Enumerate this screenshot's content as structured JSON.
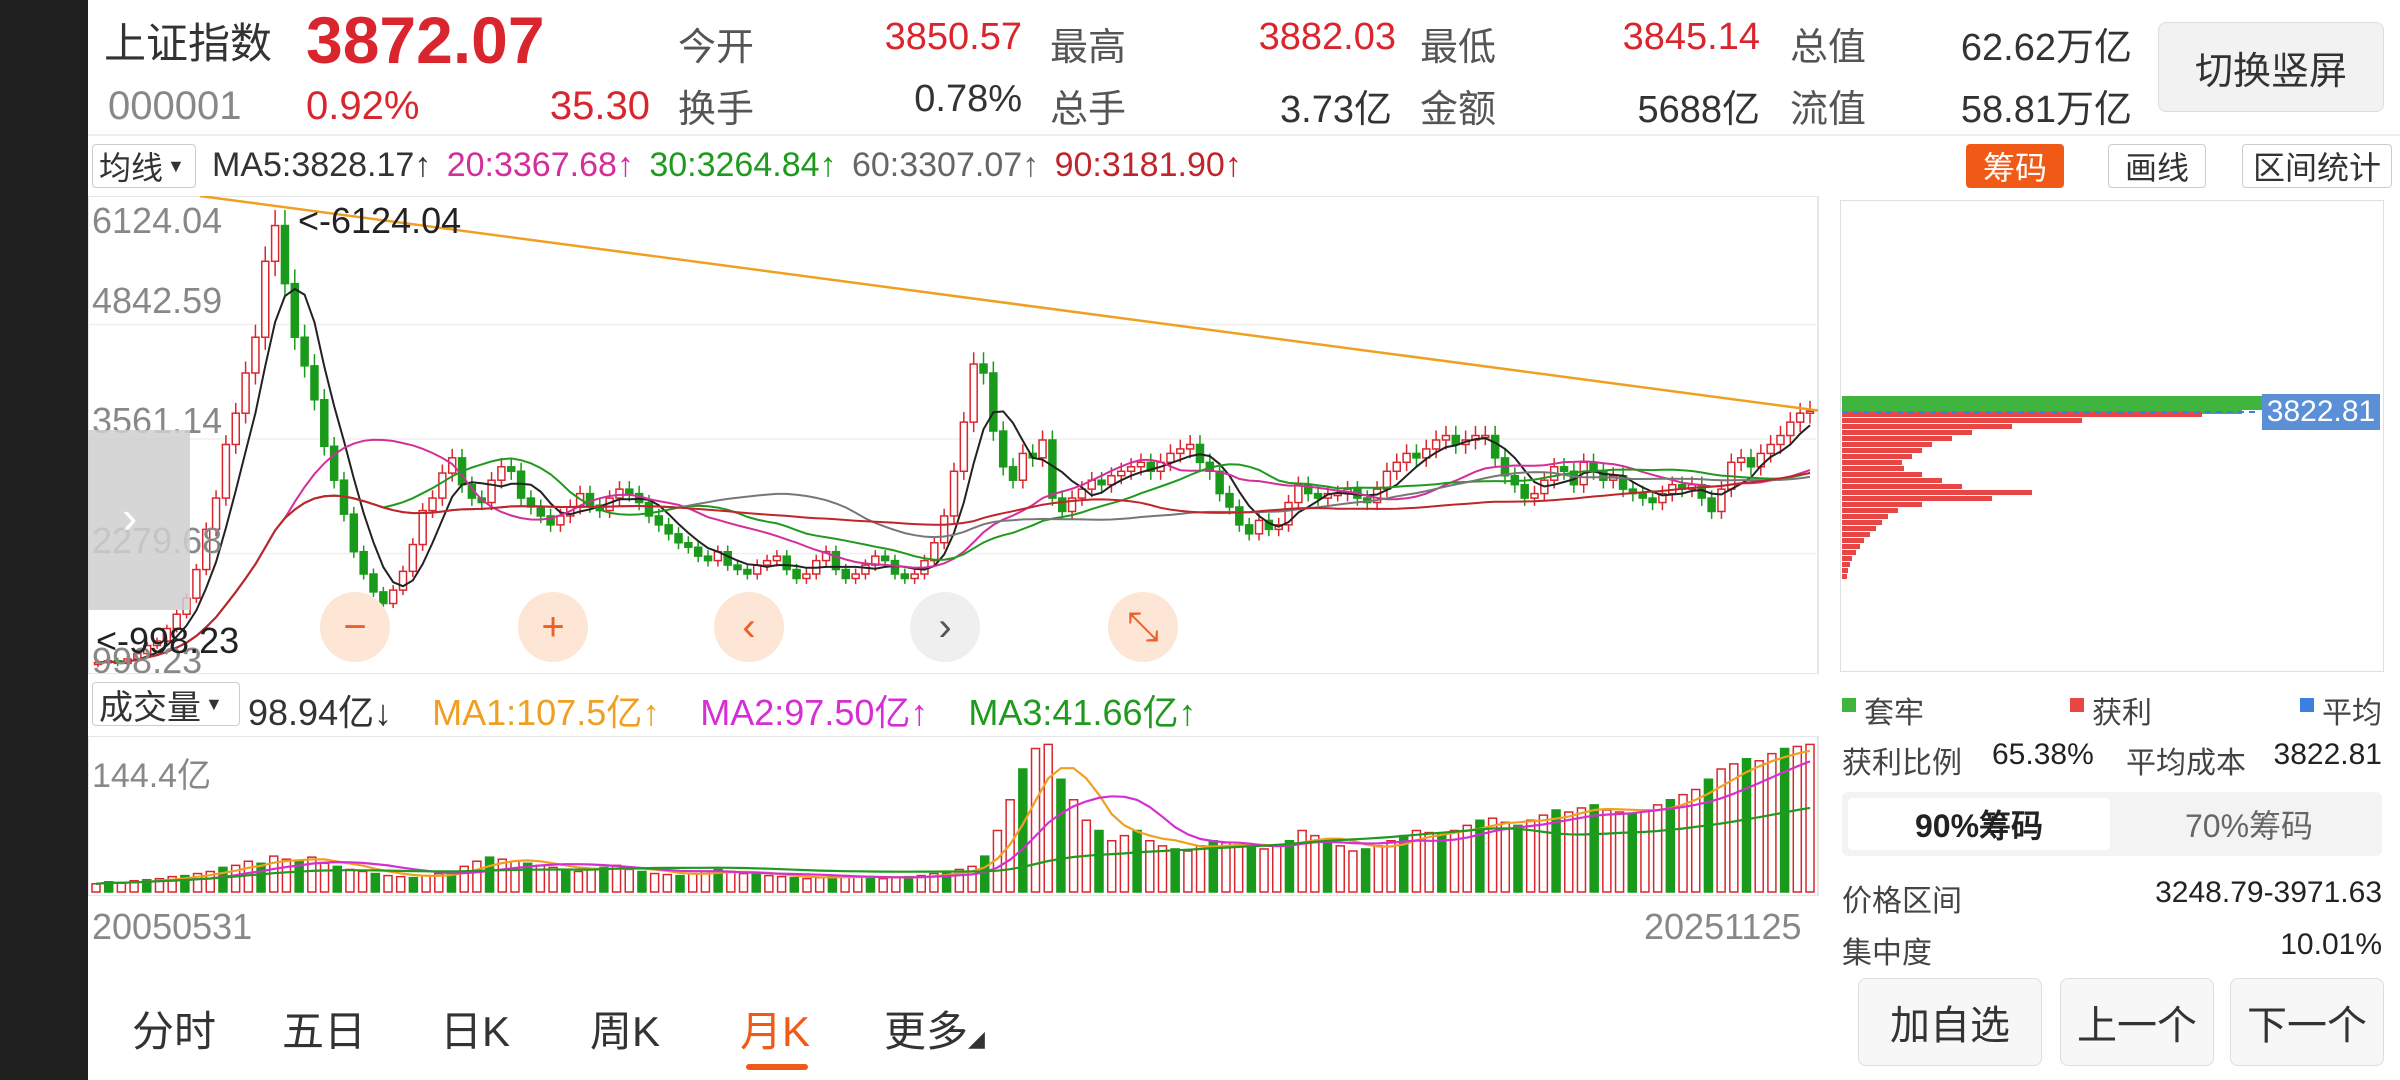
{
  "header": {
    "index_name": "上证指数",
    "price": "3872.07",
    "code": "000001",
    "change_pct": "0.92%",
    "change_abs": "35.30",
    "stats": [
      {
        "label": "今开",
        "value": "3850.57"
      },
      {
        "label": "最高",
        "value": "3882.03"
      },
      {
        "label": "最低",
        "value": "3845.14"
      },
      {
        "label": "总值",
        "value": "62.62万亿"
      },
      {
        "label": "换手",
        "value": "0.78%"
      },
      {
        "label": "总手",
        "value": "3.73亿"
      },
      {
        "label": "金额",
        "value": "5688亿"
      },
      {
        "label": "流值",
        "value": "58.81万亿"
      }
    ],
    "switch_label": "切换竖屏"
  },
  "toolbar": {
    "ma_select": "均线",
    "ma_values": [
      {
        "label": "MA5:3828.17↑",
        "color": "#333333"
      },
      {
        "label": "20:3367.68↑",
        "color": "#d42e9a"
      },
      {
        "label": "30:3264.84↑",
        "color": "#1f9a1f"
      },
      {
        "label": "60:3307.07↑",
        "color": "#666666"
      },
      {
        "label": "90:3181.90↑",
        "color": "#c0252c"
      }
    ],
    "chip_button": "筹码",
    "draw_button": "画线",
    "range_button": "区间统计"
  },
  "kline": {
    "y_ticks": [
      "6124.04",
      "4842.59",
      "3561.14",
      "2279.68",
      "998.23"
    ],
    "high_marker": "<-6124.04",
    "low_marker": "<-998.23"
  },
  "controls": {
    "zoom_out": "−",
    "zoom_in": "+",
    "prev": "‹",
    "next": "›",
    "collapse": "⤡",
    "scroll": "›"
  },
  "volume": {
    "select": "成交量",
    "current": "98.94亿↓",
    "ma": [
      {
        "label": "MA1:107.5亿↑",
        "color": "#f0a020"
      },
      {
        "label": "MA2:97.50亿↑",
        "color": "#d42ed4"
      },
      {
        "label": "MA3:41.66亿↑",
        "color": "#1f9a1f"
      }
    ],
    "max_label": "144.4亿",
    "date_start": "20050531",
    "date_end": "20251125"
  },
  "tabs": [
    {
      "label": "分时"
    },
    {
      "label": "五日"
    },
    {
      "label": "日K"
    },
    {
      "label": "周K"
    },
    {
      "label": "月K"
    },
    {
      "label": "更多"
    }
  ],
  "active_tab": "月K",
  "chips": {
    "price_tag": "3822.81",
    "legend": [
      {
        "label": "套牢",
        "color": "#3fb53f"
      },
      {
        "label": "获利",
        "color": "#e84545"
      },
      {
        "label": "平均",
        "color": "#3b7fe0"
      }
    ],
    "profit_ratio_label": "获利比例",
    "profit_ratio": "65.38%",
    "avg_cost_label": "平均成本",
    "avg_cost": "3822.81",
    "seg_90": "90%筹码",
    "seg_70": "70%筹码",
    "range_label": "价格区间",
    "range_value": "3248.79-3971.63",
    "concentration_label": "集中度",
    "concentration_value": "10.01%"
  },
  "actions": {
    "add": "加自选",
    "prev": "上一个",
    "next": "下一个"
  },
  "colors": {
    "accent": "#f05a16",
    "up": "#d9262e",
    "down": "#1a9a1a"
  },
  "chart_data": {
    "type": "candlestick",
    "title": "上证指数 月K",
    "x_start": "20050531",
    "x_end": "20251125",
    "ylim": [
      998.23,
      6124.04
    ],
    "monthly_close_approx": [
      1060,
      1080,
      1050,
      1100,
      1160,
      1250,
      1300,
      1440,
      1600,
      1780,
      2100,
      2550,
      2900,
      3500,
      3850,
      4300,
      4700,
      5550,
      5950,
      5300,
      4700,
      4380,
      4000,
      3480,
      3100,
      2720,
      2300,
      2050,
      1850,
      1720,
      1870,
      2080,
      2380,
      2760,
      2900,
      3180,
      3350,
      3050,
      2900,
      2850,
      3100,
      3250,
      3200,
      2900,
      2800,
      2700,
      2600,
      2700,
      2800,
      2950,
      2820,
      2760,
      2900,
      3000,
      2950,
      2850,
      2700,
      2600,
      2500,
      2400,
      2350,
      2250,
      2200,
      2300,
      2150,
      2100,
      2050,
      2150,
      2200,
      2250,
      2100,
      2000,
      2050,
      2200,
      2300,
      2100,
      2000,
      2050,
      2150,
      2250,
      2200,
      2050,
      2000,
      2050,
      2200,
      2400,
      2700,
      3200,
      3750,
      4400,
      4300,
      3650,
      3250,
      3100,
      3400,
      3350,
      3550,
      2900,
      2750,
      2900,
      3000,
      3100,
      3050,
      3150,
      3200,
      3250,
      3300,
      3200,
      3300,
      3400,
      3450,
      3500,
      3300,
      3200,
      2950,
      2800,
      2600,
      2500,
      2650,
      2550,
      2600,
      2850,
      3050,
      2950,
      2900,
      2950,
      2950,
      3000,
      2900,
      2850,
      3000,
      3200,
      3300,
      3400,
      3350,
      3450,
      3550,
      3600,
      3500,
      3550,
      3600,
      3600,
      3350,
      3150,
      3050,
      2900,
      2950,
      3100,
      3250,
      3200,
      3050,
      3300,
      3200,
      3100,
      3150,
      3000,
      2950,
      2900,
      2850,
      2950,
      3050,
      3000,
      3050,
      2900,
      2750,
      3000,
      3300,
      3350,
      3250,
      3400,
      3500,
      3600,
      3750,
      3850,
      3872.07
    ],
    "moving_averages": [
      "MA5",
      "MA20",
      "MA30",
      "MA60",
      "MA90"
    ],
    "trendline": {
      "from": {
        "date": "2007-10",
        "value": 6124.04
      },
      "to": {
        "date": "2025-11",
        "value": 3880
      }
    },
    "volume_unit": "亿",
    "volume_max": 144.4,
    "volume_approx": [
      8,
      10,
      9,
      11,
      12,
      13,
      15,
      16,
      18,
      20,
      24,
      26,
      30,
      28,
      35,
      32,
      30,
      34,
      28,
      25,
      22,
      20,
      18,
      16,
      15,
      14,
      16,
      18,
      20,
      25,
      30,
      34,
      32,
      30,
      28,
      26,
      24,
      22,
      20,
      22,
      24,
      26,
      22,
      20,
      18,
      17,
      16,
      18,
      20,
      22,
      20,
      18,
      17,
      16,
      15,
      14,
      13,
      14,
      15,
      16,
      15,
      14,
      13,
      14,
      15,
      16,
      18,
      20,
      22,
      25,
      35,
      60,
      90,
      120,
      140,
      144,
      110,
      90,
      70,
      60,
      50,
      55,
      60,
      50,
      45,
      42,
      40,
      45,
      50,
      48,
      46,
      44,
      42,
      45,
      50,
      60,
      55,
      50,
      45,
      40,
      42,
      45,
      50,
      55,
      60,
      58,
      56,
      60,
      65,
      70,
      72,
      68,
      65,
      70,
      75,
      80,
      78,
      82,
      85,
      80,
      78,
      76,
      80,
      85,
      90,
      95,
      100,
      110,
      120,
      125,
      130,
      128,
      135,
      140,
      142,
      144
    ]
  }
}
